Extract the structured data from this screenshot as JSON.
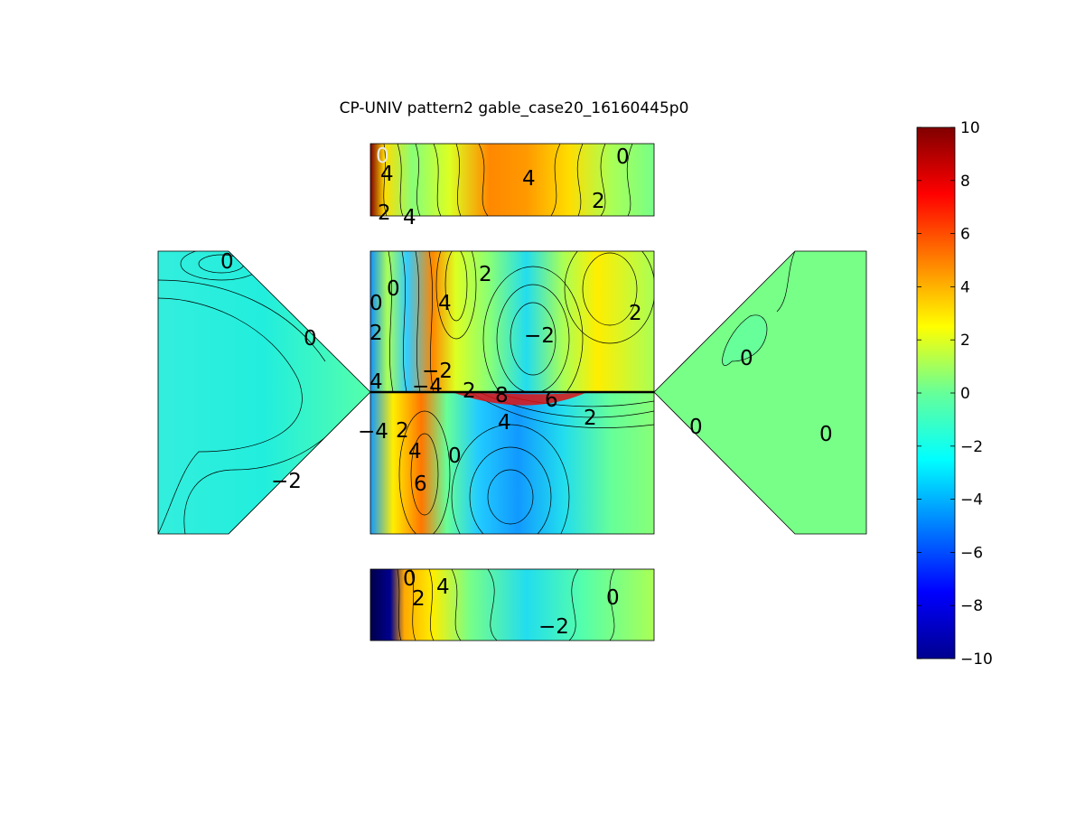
{
  "chart_data": {
    "type": "contour",
    "title": "CP-UNIV pattern2 gable_case20_16160445p0",
    "colorbar": {
      "colormap": "jet",
      "ticks": [
        "10",
        "8",
        "6",
        "4",
        "2",
        "0",
        "−2",
        "−4",
        "−6",
        "−8",
        "−10"
      ],
      "tick_values": [
        10,
        8,
        6,
        4,
        2,
        0,
        -2,
        -4,
        -6,
        -8,
        -10
      ],
      "range": [
        -10,
        10
      ]
    },
    "contour_labels": {
      "top_face": [
        "0",
        "4",
        "2",
        "4",
        "4",
        "2",
        "0"
      ],
      "main_upper": [
        "0",
        "2",
        "4",
        "0",
        "2",
        "−2",
        "2",
        "4",
        "−2",
        "−4",
        "2",
        "8",
        "6"
      ],
      "main_lower": [
        "−4",
        "2",
        "4",
        "4",
        "0",
        "6",
        "2"
      ],
      "left_face": [
        "0",
        "0",
        "−2"
      ],
      "right_face": [
        "0",
        "0",
        "0"
      ],
      "bottom_face": [
        "0",
        "4",
        "2",
        "0",
        "−2"
      ]
    }
  }
}
